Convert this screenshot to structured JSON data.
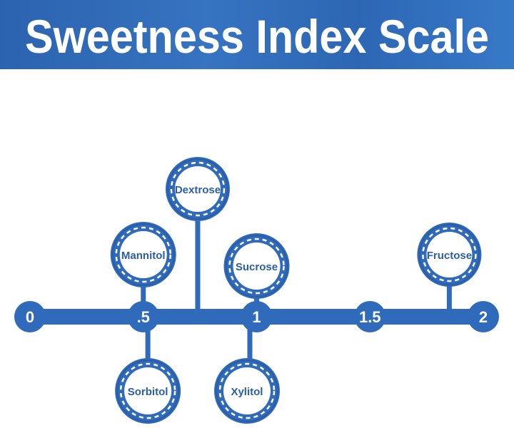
{
  "title": "Sweetness Index Scale",
  "colors": {
    "primary": "#2f6abb",
    "dark": "#2a5da6",
    "text_on_blue": "#ffffff",
    "node_text": "#2a5ea8"
  },
  "scale": {
    "min": 0,
    "max": 2,
    "ticks": [
      {
        "value": 0,
        "label": "0"
      },
      {
        "value": 0.5,
        "label": ".5"
      },
      {
        "value": 1,
        "label": "1"
      },
      {
        "value": 1.5,
        "label": "1.5"
      },
      {
        "value": 2,
        "label": "2"
      }
    ]
  },
  "sweeteners": [
    {
      "name": "Dextrose",
      "value": 0.74,
      "side": "above"
    },
    {
      "name": "Mannitol",
      "value": 0.5,
      "side": "above"
    },
    {
      "name": "Sucrose",
      "value": 1.0,
      "side": "above"
    },
    {
      "name": "Fructose",
      "value": 1.85,
      "side": "above"
    },
    {
      "name": "Sorbitol",
      "value": 0.52,
      "side": "below"
    },
    {
      "name": "Xylitol",
      "value": 0.97,
      "side": "below"
    }
  ]
}
